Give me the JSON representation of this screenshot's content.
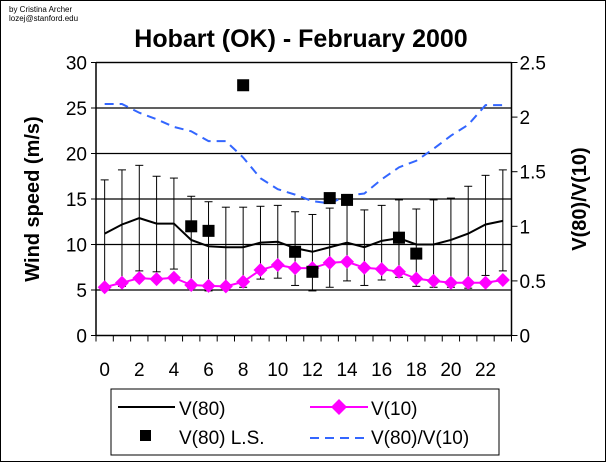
{
  "credit": {
    "line1": "by Cristina Archer",
    "line2": "lozej@stanford.edu"
  },
  "chart_data": {
    "type": "line",
    "title": "Hobart (OK) - February 2000",
    "xlabel": "",
    "ylabel": "Wind speed (m/s)",
    "y2label": "V(80)/V(10)",
    "ylim": [
      0,
      30
    ],
    "y2lim": [
      0,
      2.5
    ],
    "yticks": [
      "0",
      "5",
      "10",
      "15",
      "20",
      "25",
      "30"
    ],
    "y2ticks": [
      "0",
      "0.5",
      "1",
      "1.5",
      "2",
      "2.5"
    ],
    "x": [
      0,
      1,
      2,
      3,
      4,
      5,
      6,
      7,
      8,
      9,
      10,
      11,
      12,
      13,
      14,
      15,
      16,
      17,
      18,
      19,
      20,
      21,
      22,
      23
    ],
    "xtick_labels": [
      "0",
      "2",
      "4",
      "6",
      "8",
      "10",
      "12",
      "14",
      "16",
      "18",
      "20",
      "22"
    ],
    "grid": "horizontal",
    "legend_position": "bottom",
    "series": [
      {
        "name": "V(80)",
        "axis": "left",
        "style": "solid",
        "color": "#000000",
        "values": [
          11.2,
          12.2,
          12.9,
          12.3,
          12.3,
          10.5,
          9.8,
          9.7,
          9.7,
          10.2,
          10.3,
          9.6,
          9.2,
          9.7,
          10.2,
          9.7,
          10.4,
          10.7,
          10.0,
          10.0,
          10.5,
          11.2,
          12.2,
          12.6
        ],
        "error_upper": [
          17.1,
          18.2,
          18.7,
          17.5,
          17.3,
          15.3,
          14.7,
          14.1,
          14.1,
          14.2,
          14.3,
          13.6,
          13.3,
          14.0,
          15.5,
          13.8,
          14.3,
          14.9,
          13.9,
          14.9,
          15.1,
          16.4,
          17.6,
          18.2
        ],
        "error_lower": [
          5.3,
          5.4,
          7.1,
          7.0,
          7.3,
          5.2,
          4.9,
          5.2,
          5.3,
          6.2,
          6.3,
          5.5,
          4.9,
          5.3,
          6.0,
          5.5,
          6.1,
          6.4,
          5.4,
          5.3,
          5.3,
          5.2,
          6.6,
          7.1
        ]
      },
      {
        "name": "V(10)",
        "axis": "left",
        "style": "diamond",
        "color": "#ff00ff",
        "values": [
          5.3,
          5.8,
          6.3,
          6.2,
          6.35,
          5.55,
          5.45,
          5.4,
          5.9,
          7.2,
          7.75,
          7.4,
          7.4,
          8.0,
          8.1,
          7.45,
          7.3,
          7.0,
          6.25,
          6.0,
          5.8,
          5.8,
          5.8,
          6.1
        ]
      },
      {
        "name": "V(80) L.S.",
        "axis": "left",
        "style": "square",
        "color": "#000000",
        "points": [
          [
            5,
            12.0
          ],
          [
            6,
            11.5
          ],
          [
            8,
            27.5
          ],
          [
            11,
            9.2
          ],
          [
            12,
            7.0
          ],
          [
            13,
            15.1
          ],
          [
            14,
            14.9
          ],
          [
            17,
            10.75
          ],
          [
            18,
            9.0
          ]
        ]
      },
      {
        "name": "V(80)/V(10)",
        "axis": "right",
        "style": "dashed",
        "color": "#3366ff",
        "values": [
          2.12,
          2.12,
          2.04,
          1.98,
          1.91,
          1.87,
          1.78,
          1.78,
          1.63,
          1.44,
          1.34,
          1.29,
          1.23,
          1.21,
          1.28,
          1.3,
          1.43,
          1.54,
          1.6,
          1.71,
          1.83,
          1.93,
          2.11,
          2.11
        ]
      }
    ]
  }
}
